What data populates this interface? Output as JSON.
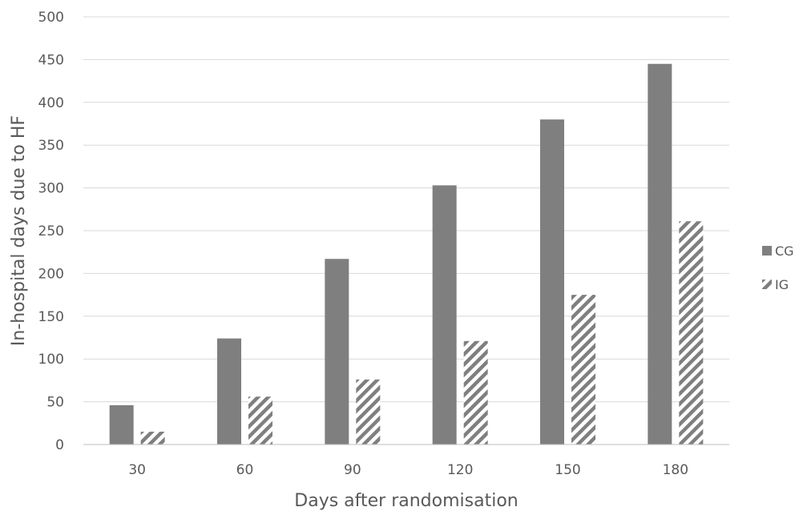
{
  "chart_data": {
    "type": "bar",
    "categories": [
      "30",
      "60",
      "90",
      "120",
      "150",
      "180"
    ],
    "series": [
      {
        "name": "CG",
        "values": [
          46,
          124,
          217,
          303,
          380,
          445
        ],
        "color": "#7f7f7f",
        "pattern": "solid"
      },
      {
        "name": "IG",
        "values": [
          15,
          56,
          76,
          121,
          175,
          261
        ],
        "color": "#7f7f7f",
        "pattern": "diagonal-hatch"
      }
    ],
    "xlabel": "Days after randomisation",
    "ylabel": "In-hospital days due to HF",
    "ylim": [
      0,
      500
    ],
    "yticks": [
      "0",
      "50",
      "100",
      "150",
      "200",
      "250",
      "300",
      "350",
      "400",
      "450",
      "500"
    ],
    "grid": true,
    "legend_position": "right"
  }
}
